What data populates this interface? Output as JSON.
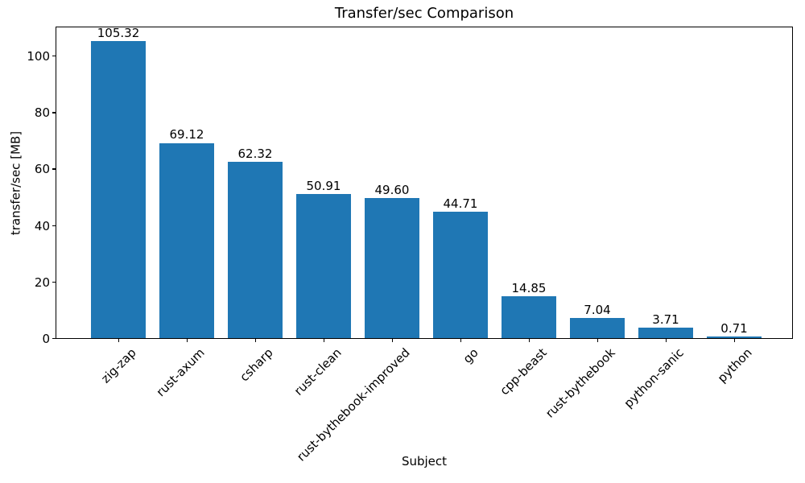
{
  "chart_data": {
    "type": "bar",
    "title": "Transfer/sec Comparison",
    "xlabel": "Subject",
    "ylabel": "transfer/sec [MB]",
    "categories": [
      "zig-zap",
      "rust-axum",
      "csharp",
      "rust-clean",
      "rust-bythebook-improved",
      "go",
      "cpp-beast",
      "rust-bythebook",
      "python-sanic",
      "python"
    ],
    "values": [
      105.32,
      69.12,
      62.32,
      50.91,
      49.6,
      44.71,
      14.85,
      7.04,
      3.71,
      0.71
    ],
    "value_labels": [
      "105.32",
      "69.12",
      "62.32",
      "50.91",
      "49.60",
      "44.71",
      "14.85",
      "7.04",
      "3.71",
      "0.71"
    ],
    "yticks": [
      0,
      20,
      40,
      60,
      80,
      100
    ],
    "ylim": [
      0,
      110.59
    ],
    "bar_color": "#1f77b4",
    "text_color": "#000000",
    "grid": false,
    "legend": "none"
  }
}
